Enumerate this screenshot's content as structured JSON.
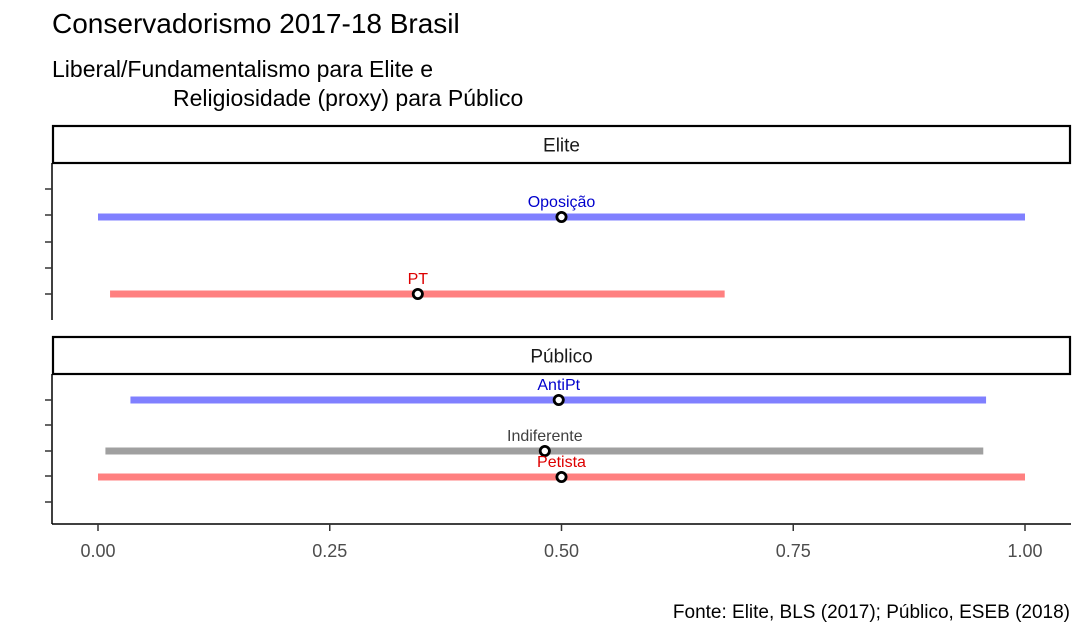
{
  "title": "Conservadorismo 2017-18 Brasil",
  "subtitle_line1": "Liberal/Fundamentalismo para Elite e",
  "subtitle_line2": "Religiosidade (proxy) para Público",
  "caption": "Fonte: Elite, BLS (2017); Público, ESEB (2018)",
  "chart_data": {
    "type": "interval",
    "x_range": [
      -0.05,
      1.05
    ],
    "x_ticks": [
      0.0,
      0.25,
      0.5,
      0.75,
      1.0
    ],
    "x_tick_labels": [
      "0.00",
      "0.25",
      "0.50",
      "0.75",
      "1.00"
    ],
    "xlabel": "",
    "ylabel": "",
    "grid": false,
    "panels": [
      {
        "name": "Elite",
        "groups": [
          {
            "label": "Oposição",
            "low": 0.0,
            "high": 1.0,
            "point": 0.5,
            "color": "#8080FF",
            "label_color": "#0000CC"
          },
          {
            "label": "PT",
            "low": 0.013,
            "high": 0.676,
            "point": 0.345,
            "color": "#FF8080",
            "label_color": "#DD0000"
          }
        ]
      },
      {
        "name": "Público",
        "groups": [
          {
            "label": "AntiPt",
            "low": 0.035,
            "high": 0.958,
            "point": 0.497,
            "color": "#8080FF",
            "label_color": "#0000CC"
          },
          {
            "label": "Indiferente",
            "low": 0.008,
            "high": 0.955,
            "point": 0.482,
            "color": "#A0A0A0",
            "label_color": "#404040"
          },
          {
            "label": "Petista",
            "low": 0.0,
            "high": 1.0,
            "point": 0.5,
            "color": "#FF8080",
            "label_color": "#DD0000"
          }
        ]
      }
    ]
  }
}
